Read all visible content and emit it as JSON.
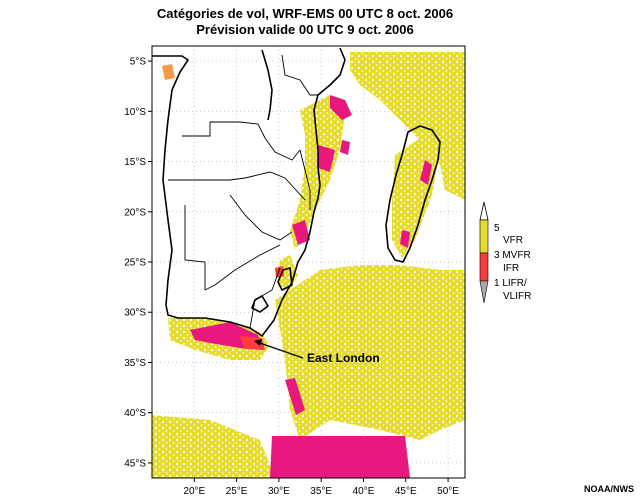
{
  "title": {
    "line1": "Catégories de vol, WRF-EMS 00 UTC 8 oct. 2006",
    "line2": "Prévision valide 00 UTC 9 oct. 2006"
  },
  "map": {
    "lon_range": [
      15,
      52
    ],
    "lat_range": [
      -46.5,
      -3.5
    ],
    "lat_ticks": [
      {
        "lat": -5,
        "label": "5°S"
      },
      {
        "lat": -10,
        "label": "10°S"
      },
      {
        "lat": -15,
        "label": "15°S"
      },
      {
        "lat": -20,
        "label": "20°S"
      },
      {
        "lat": -25,
        "label": "25°S"
      },
      {
        "lat": -30,
        "label": "30°S"
      },
      {
        "lat": -35,
        "label": "35°S"
      },
      {
        "lat": -40,
        "label": "40°S"
      },
      {
        "lat": -45,
        "label": "45°S"
      }
    ],
    "lon_ticks": [
      {
        "lon": 20,
        "label": "20°E"
      },
      {
        "lon": 25,
        "label": "25°E"
      },
      {
        "lon": 30,
        "label": "30°E"
      },
      {
        "lon": 35,
        "label": "35°E"
      },
      {
        "lon": 40,
        "label": "40°E"
      },
      {
        "lon": 45,
        "label": "45°E"
      },
      {
        "lon": 50,
        "label": "50°E"
      }
    ],
    "annotation": {
      "label": "East London",
      "lon": 27.9,
      "lat": -33.0
    },
    "colors": {
      "vfr": "#e6dc2e",
      "mvfr": "#e8187e",
      "ifr": "#ff3b3b",
      "lifr": "#a8a8a8",
      "coast": "#000000"
    }
  },
  "legend": {
    "labels": [
      {
        "text": "5"
      },
      {
        "text": "VFR"
      },
      {
        "text": "3 MVFR"
      },
      {
        "text": "IFR"
      },
      {
        "text": "1 LIFR/"
      },
      {
        "text": "VLIFR"
      }
    ]
  },
  "credit": "NOAA/NWS"
}
